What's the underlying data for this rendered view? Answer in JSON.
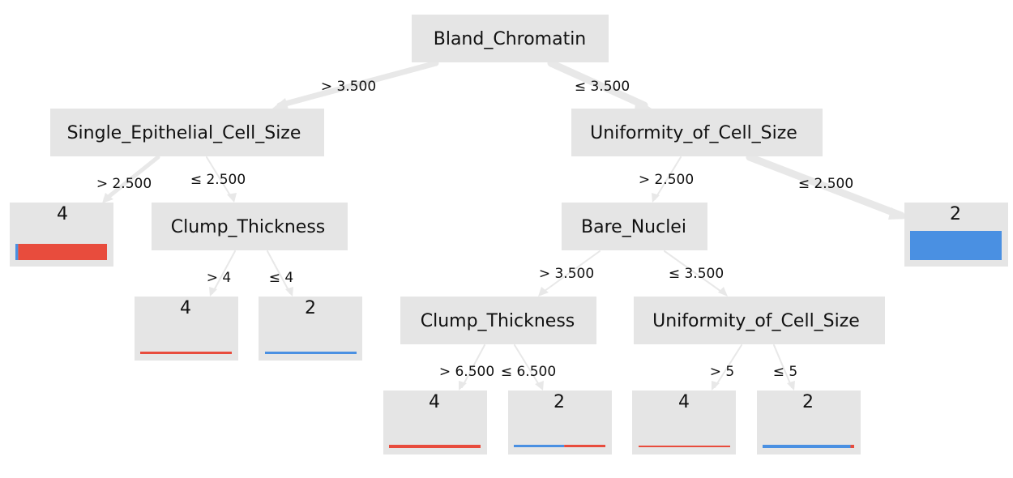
{
  "colors": {
    "node_bg": "#e5e5e5",
    "edge": "#e8e8e8",
    "class_2": "#4a90e2",
    "class_4": "#e84c3d"
  },
  "nodes": {
    "root": "Bland_Chromatin",
    "left": "Single_Epithelial_Cell_Size",
    "right": "Uniformity_of_Cell_Size",
    "left_split": "Clump_Thickness",
    "right_split": "Bare_Nuclei",
    "bn_left": "Clump_Thickness",
    "bn_right": "Uniformity_of_Cell_Size"
  },
  "leaves": {
    "leaf_a": {
      "label": "4",
      "share_class_2": 0.03
    },
    "leaf_b": {
      "label": "4",
      "share_class_2": 0.0
    },
    "leaf_c": {
      "label": "2",
      "share_class_2": 1.0
    },
    "leaf_d": {
      "label": "2",
      "share_class_2": 1.0
    },
    "leaf_e": {
      "label": "4",
      "share_class_2": 0.0
    },
    "leaf_f": {
      "label": "2",
      "share_class_2": 0.55
    },
    "leaf_g": {
      "label": "4",
      "share_class_2": 0.0
    },
    "leaf_h": {
      "label": "2",
      "share_class_2": 0.96
    }
  },
  "edges": {
    "root_left": "> 3.500",
    "root_right": "≤ 3.500",
    "left_leaf": "> 2.500",
    "left_split": "≤ 2.500",
    "ct_gt": "> 4",
    "ct_le": "≤ 4",
    "right_split": "> 2.500",
    "right_leaf": "≤ 2.500",
    "bn_gt": "> 3.500",
    "bn_le": "≤ 3.500",
    "ct2_gt": "> 6.500",
    "ct2_le": "≤ 6.500",
    "ucs_gt": "> 5",
    "ucs_le": "≤ 5"
  }
}
